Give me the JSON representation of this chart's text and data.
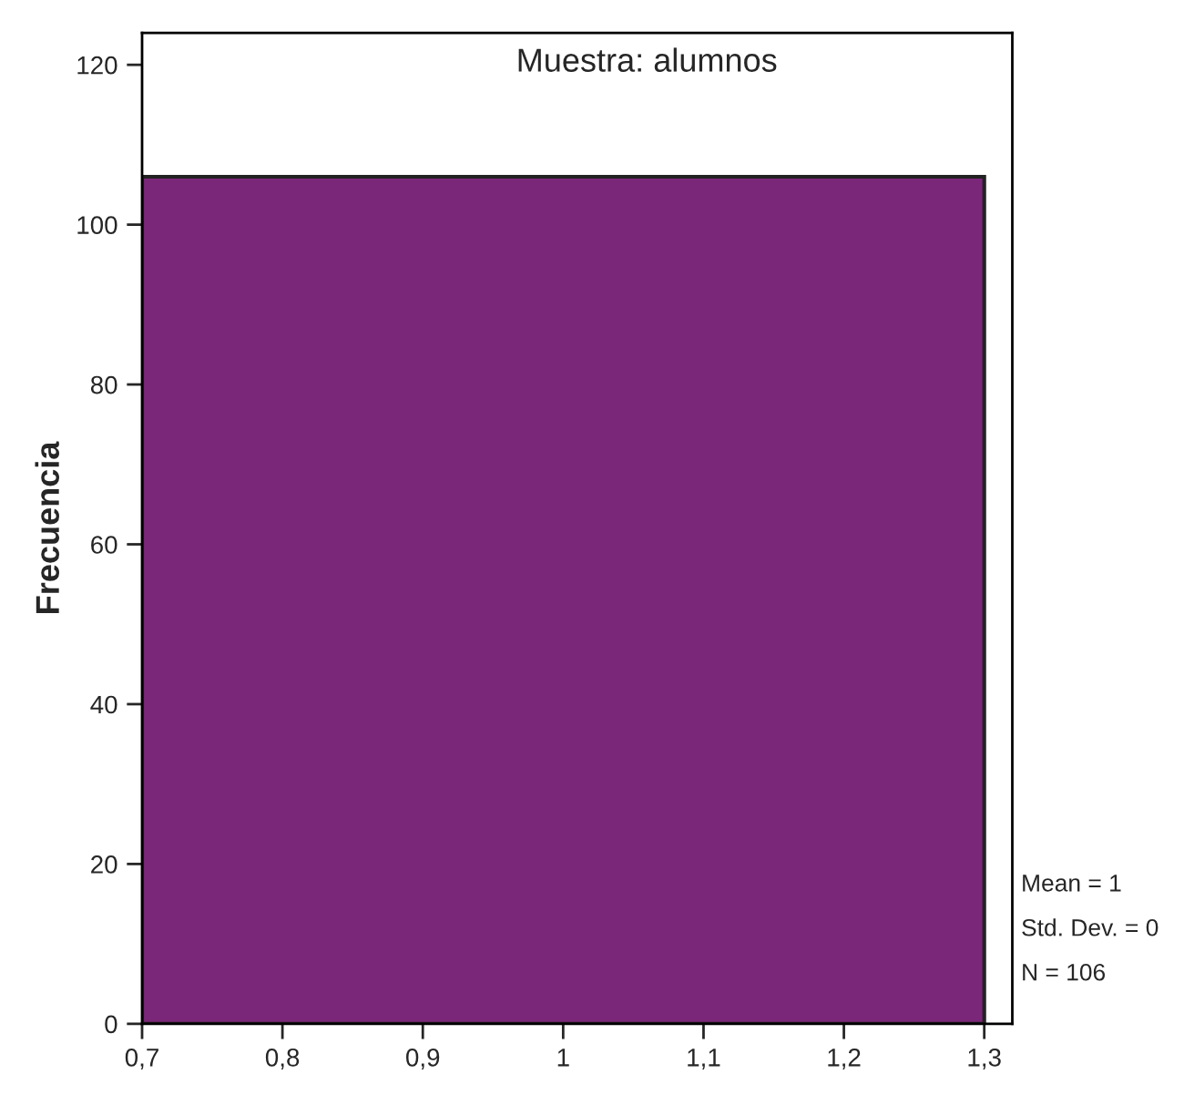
{
  "chart_data": {
    "type": "histogram",
    "title": "Muestra: alumnos",
    "ylabel": "Frecuencia",
    "bins": [
      0.7,
      1.3
    ],
    "values": [
      106
    ],
    "color": "#7b2779",
    "xlim": [
      0.7,
      1.32
    ],
    "xticks": [
      {
        "value": 0.7,
        "label": "0,7"
      },
      {
        "value": 0.8,
        "label": "0,8"
      },
      {
        "value": 0.9,
        "label": "0,9"
      },
      {
        "value": 1,
        "label": "1"
      },
      {
        "value": 1.1,
        "label": "1,1"
      },
      {
        "value": 1.2,
        "label": "1,2"
      },
      {
        "value": 1.3,
        "label": "1,3"
      }
    ],
    "ylim": [
      0,
      124
    ],
    "yticks": [
      0,
      20,
      40,
      60,
      80,
      100,
      120
    ],
    "grid": false,
    "annotations": [
      "Mean = 1",
      "Std. Dev. = 0",
      "N = 106"
    ]
  }
}
